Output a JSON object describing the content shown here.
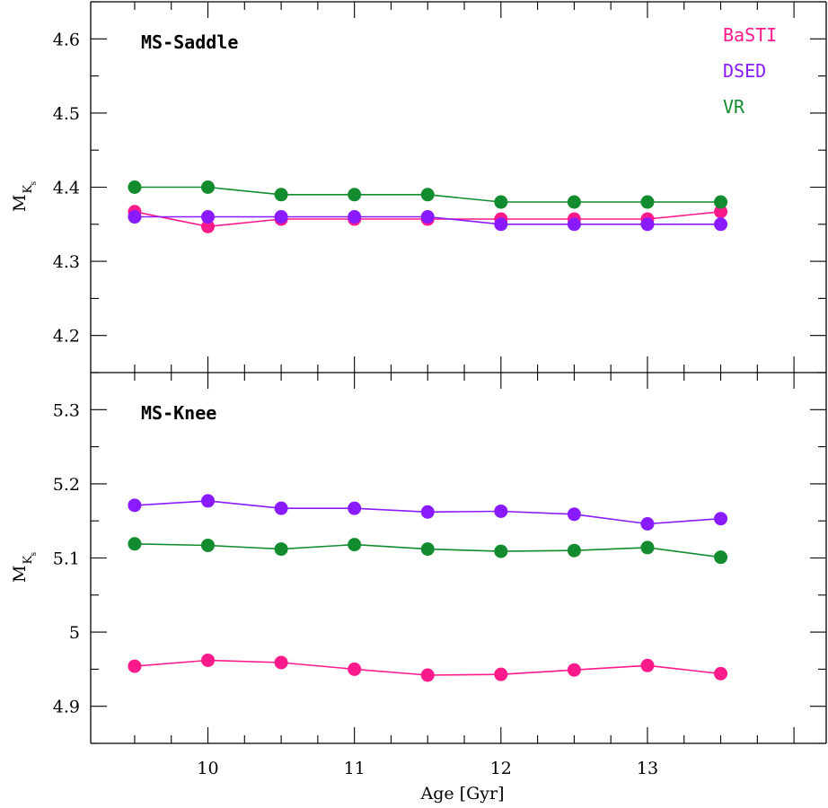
{
  "chart_data": [
    {
      "type": "line",
      "panel_label": "MS-Saddle",
      "ylabel": "M",
      "ylabel_sub": "K",
      "ylabel_subsub": "s",
      "ylim": [
        4.15,
        4.65
      ],
      "yticks": [
        "4.2",
        "4.3",
        "4.4",
        "4.5",
        "4.6"
      ],
      "x": [
        9.5,
        10,
        10.5,
        11,
        11.5,
        12,
        12.5,
        13,
        13.5
      ],
      "series": [
        {
          "name": "BaSTI",
          "color": "#ff1a8c",
          "values": [
            4.367,
            4.347,
            4.357,
            4.357,
            4.357,
            4.357,
            4.357,
            4.357,
            4.367
          ]
        },
        {
          "name": "DSED",
          "color": "#8a1aff",
          "values": [
            4.36,
            4.36,
            4.36,
            4.36,
            4.36,
            4.35,
            4.35,
            4.35,
            4.35
          ]
        },
        {
          "name": "VR",
          "color": "#128c2e",
          "values": [
            4.4,
            4.4,
            4.39,
            4.39,
            4.39,
            4.38,
            4.38,
            4.38,
            4.38
          ]
        }
      ],
      "legend": [
        "BaSTI",
        "DSED",
        "VR"
      ],
      "legend_position": "top-right",
      "grid": false
    },
    {
      "type": "line",
      "panel_label": "MS-Knee",
      "ylabel": "M",
      "ylabel_sub": "K",
      "ylabel_subsub": "s",
      "ylim": [
        4.85,
        5.35
      ],
      "yticks": [
        "4.9",
        "5",
        "5.1",
        "5.2",
        "5.3"
      ],
      "xlabel": "Age [Gyr]",
      "xlim": [
        9.2,
        14.22
      ],
      "xticks": [
        "10",
        "11",
        "12",
        "13"
      ],
      "x": [
        9.5,
        10,
        10.5,
        11,
        11.5,
        12,
        12.5,
        13,
        13.5
      ],
      "series": [
        {
          "name": "BaSTI",
          "color": "#ff1a8c",
          "values": [
            4.954,
            4.962,
            4.959,
            4.95,
            4.942,
            4.943,
            4.949,
            4.955,
            4.944
          ]
        },
        {
          "name": "DSED",
          "color": "#8a1aff",
          "values": [
            5.171,
            5.177,
            5.167,
            5.167,
            5.162,
            5.163,
            5.159,
            5.146,
            5.153
          ]
        },
        {
          "name": "VR",
          "color": "#128c2e",
          "values": [
            5.119,
            5.117,
            5.112,
            5.118,
            5.112,
            5.109,
            5.11,
            5.114,
            5.101
          ]
        }
      ],
      "grid": false
    }
  ]
}
